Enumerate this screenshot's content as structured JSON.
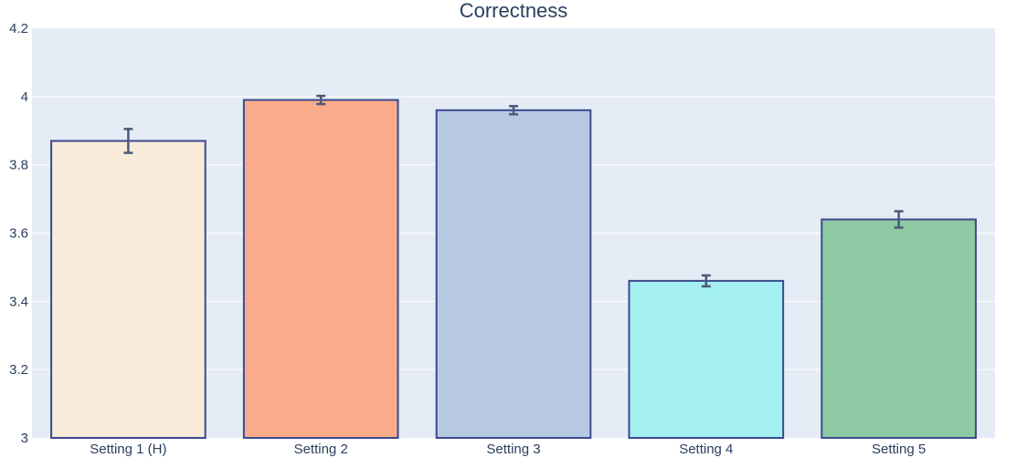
{
  "chart_data": {
    "type": "bar",
    "title": "Correctness",
    "xlabel": "",
    "ylabel": "",
    "categories": [
      "Setting 1 (H)",
      "Setting 2",
      "Setting 3",
      "Setting 4",
      "Setting 5"
    ],
    "values": [
      3.87,
      3.99,
      3.96,
      3.46,
      3.64
    ],
    "errors": [
      0.035,
      0.012,
      0.012,
      0.016,
      0.024
    ],
    "colors": [
      "#f8ebda",
      "#faab8a",
      "#b7c8e2",
      "#a3eff1",
      "#8ecba4"
    ],
    "ylim": [
      3,
      4.2
    ],
    "yticks": [
      3,
      3.2,
      3.4,
      3.6,
      3.8,
      4,
      4.2
    ],
    "ytick_labels": [
      "3",
      "3.2",
      "3.4",
      "3.6",
      "3.8",
      "4",
      "4.2"
    ],
    "grid": true,
    "legend": "none"
  },
  "style": {
    "plot_bg": "#e5ecf6",
    "grid_color": "#ffffff",
    "bar_outline": "#3b4a8f",
    "error_bar_color": "#4a5a7a",
    "text_color": "#2a3f5f"
  }
}
